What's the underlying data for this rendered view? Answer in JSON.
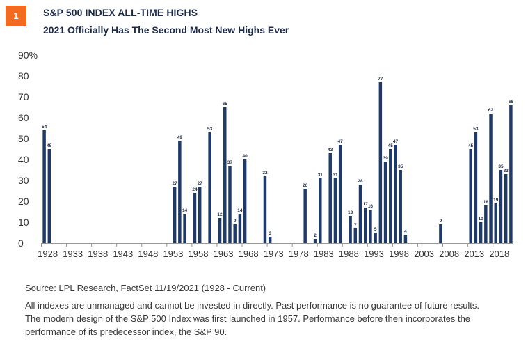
{
  "header": {
    "badge": "1",
    "title": "S&P 500 INDEX ALL-TIME HIGHS",
    "subtitle": "2021 Officially Has The Second Most New Highs Ever"
  },
  "footer": {
    "source": "Source: LPL Research, FactSet  11/19/2021 (1928 - Current)",
    "disclaimer_1": "All indexes are unmanaged and cannot be invested in directly. Past performance is no guarantee of future results.",
    "disclaimer_2": "The modern design of the S&P 500 Index was first launched in 1957. Performance before then incorporates the performance of its predecessor index, the S&P 90."
  },
  "chart_data": {
    "type": "bar",
    "title": "",
    "xlabel": "",
    "ylabel": "",
    "ylim": [
      0,
      90
    ],
    "y_ticks": [
      "0",
      "10",
      "20",
      "30",
      "40",
      "50",
      "60",
      "70",
      "80",
      "90%"
    ],
    "x_ticks": [
      "1928",
      "1933",
      "1938",
      "1943",
      "1948",
      "1953",
      "1958",
      "1963",
      "1968",
      "1973",
      "1978",
      "1983",
      "1988",
      "1993",
      "1998",
      "2003",
      "2008",
      "2013",
      "2018"
    ],
    "colors": {
      "bar": "#1f3a68",
      "axis": "#999999"
    },
    "grid": false,
    "data": [
      {
        "year": 1928,
        "value": 54
      },
      {
        "year": 1929,
        "value": 45
      },
      {
        "year": 1954,
        "value": 27
      },
      {
        "year": 1955,
        "value": 49
      },
      {
        "year": 1956,
        "value": 14
      },
      {
        "year": 1958,
        "value": 24
      },
      {
        "year": 1959,
        "value": 27
      },
      {
        "year": 1961,
        "value": 53
      },
      {
        "year": 1963,
        "value": 12
      },
      {
        "year": 1964,
        "value": 65
      },
      {
        "year": 1965,
        "value": 37
      },
      {
        "year": 1966,
        "value": 9
      },
      {
        "year": 1967,
        "value": 14
      },
      {
        "year": 1968,
        "value": 40
      },
      {
        "year": 1972,
        "value": 32
      },
      {
        "year": 1973,
        "value": 3
      },
      {
        "year": 1980,
        "value": 26
      },
      {
        "year": 1982,
        "value": 2
      },
      {
        "year": 1983,
        "value": 31
      },
      {
        "year": 1985,
        "value": 43
      },
      {
        "year": 1986,
        "value": 31
      },
      {
        "year": 1987,
        "value": 47
      },
      {
        "year": 1989,
        "value": 13
      },
      {
        "year": 1990,
        "value": 7
      },
      {
        "year": 1991,
        "value": 28
      },
      {
        "year": 1992,
        "value": 17
      },
      {
        "year": 1993,
        "value": 16
      },
      {
        "year": 1994,
        "value": 5
      },
      {
        "year": 1995,
        "value": 77
      },
      {
        "year": 1996,
        "value": 39
      },
      {
        "year": 1997,
        "value": 45
      },
      {
        "year": 1998,
        "value": 47
      },
      {
        "year": 1999,
        "value": 35
      },
      {
        "year": 2000,
        "value": 4
      },
      {
        "year": 2007,
        "value": 9
      },
      {
        "year": 2013,
        "value": 45
      },
      {
        "year": 2014,
        "value": 53
      },
      {
        "year": 2015,
        "value": 10
      },
      {
        "year": 2016,
        "value": 18
      },
      {
        "year": 2017,
        "value": 62
      },
      {
        "year": 2018,
        "value": 19
      },
      {
        "year": 2019,
        "value": 35
      },
      {
        "year": 2020,
        "value": 33
      },
      {
        "year": 2021,
        "value": 66
      }
    ]
  }
}
